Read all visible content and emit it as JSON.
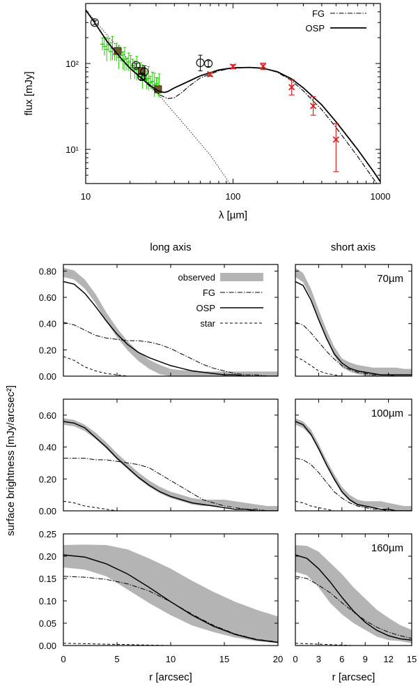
{
  "chart_data": [
    {
      "id": "sed",
      "type": "line",
      "xscale": "log",
      "yscale": "log",
      "xlim": [
        10,
        1000
      ],
      "ylim": [
        4,
        500
      ],
      "xlabel": "λ [µm]",
      "ylabel": "flux [mJy]",
      "xticks": [
        10,
        100,
        1000
      ],
      "xtick_labels": [
        "10",
        "100",
        "1000"
      ],
      "yticks": [
        10,
        100
      ],
      "ytick_labels": [
        "10¹",
        "10²"
      ],
      "legend": {
        "position": "top-right",
        "entries": [
          "FG",
          "OSP"
        ]
      },
      "series": {
        "OSP": {
          "x": [
            10,
            11.5,
            14,
            17,
            20,
            24,
            28,
            31,
            34,
            36,
            40,
            50,
            60,
            80,
            100,
            130,
            160,
            200,
            250,
            300,
            400,
            500,
            700,
            900,
            1000
          ],
          "y": [
            420,
            300,
            180,
            120,
            88,
            67,
            54,
            48,
            46,
            47,
            52,
            62,
            72,
            84,
            89,
            90,
            88,
            80,
            66,
            52,
            33,
            21,
            10,
            5.5,
            4.2
          ]
        },
        "FG": {
          "x": [
            10,
            11.5,
            14,
            17,
            20,
            24,
            28,
            32,
            36,
            40,
            45,
            50,
            60,
            80,
            100,
            130,
            160,
            200,
            250,
            300,
            400,
            500,
            700,
            900,
            1000
          ],
          "y": [
            420,
            300,
            180,
            120,
            88,
            66,
            52,
            43,
            39,
            40,
            46,
            54,
            68,
            82,
            89,
            90,
            88,
            79,
            63,
            48,
            29,
            18,
            8.3,
            4.5,
            3.5
          ]
        },
        "star": {
          "x": [
            10,
            20,
            30,
            50,
            70,
            95
          ],
          "y": [
            420,
            105,
            47,
            17,
            8.6,
            4.0
          ]
        }
      },
      "spectrum_points": [
        {
          "x": 13.0,
          "y": 168
        },
        {
          "x": 13.4,
          "y": 158
        },
        {
          "x": 13.9,
          "y": 146
        },
        {
          "x": 14.3,
          "y": 165
        },
        {
          "x": 14.8,
          "y": 138
        },
        {
          "x": 15.2,
          "y": 150
        },
        {
          "x": 15.7,
          "y": 128
        },
        {
          "x": 16.2,
          "y": 135
        },
        {
          "x": 16.8,
          "y": 118
        },
        {
          "x": 17.3,
          "y": 124
        },
        {
          "x": 17.9,
          "y": 108
        },
        {
          "x": 18.4,
          "y": 112
        },
        {
          "x": 19.0,
          "y": 98
        },
        {
          "x": 19.6,
          "y": 104
        },
        {
          "x": 20.2,
          "y": 90
        },
        {
          "x": 20.8,
          "y": 95
        },
        {
          "x": 21.5,
          "y": 84
        },
        {
          "x": 22.2,
          "y": 88
        },
        {
          "x": 22.9,
          "y": 76
        },
        {
          "x": 23.6,
          "y": 80
        },
        {
          "x": 24.3,
          "y": 70
        },
        {
          "x": 25.1,
          "y": 73
        },
        {
          "x": 25.9,
          "y": 64
        },
        {
          "x": 26.7,
          "y": 67
        },
        {
          "x": 27.5,
          "y": 60
        },
        {
          "x": 28.4,
          "y": 62
        },
        {
          "x": 29.3,
          "y": 56
        },
        {
          "x": 30.2,
          "y": 58
        },
        {
          "x": 31.0,
          "y": 53
        },
        {
          "x": 31.6,
          "y": 55
        }
      ],
      "squares": [
        {
          "x": 16.5,
          "y": 140
        },
        {
          "x": 24,
          "y": 82
        },
        {
          "x": 31,
          "y": 50
        }
      ],
      "circles": [
        {
          "x": 11.5,
          "y": 300,
          "lo": 285,
          "hi": 315
        },
        {
          "x": 22,
          "y": 95,
          "lo": 90,
          "hi": 100
        },
        {
          "x": 24,
          "y": 70,
          "lo": 65,
          "hi": 75
        },
        {
          "x": 25,
          "y": 80,
          "lo": 66,
          "hi": 94
        },
        {
          "x": 60,
          "y": 102,
          "lo": 82,
          "hi": 125
        },
        {
          "x": 68,
          "y": 100,
          "lo": 92,
          "hi": 108
        }
      ],
      "crosses": [
        {
          "x": 70,
          "y": 75,
          "lo": 71,
          "hi": 79
        },
        {
          "x": 100,
          "y": 92,
          "lo": 87,
          "hi": 97
        },
        {
          "x": 160,
          "y": 93,
          "lo": 85,
          "hi": 101
        },
        {
          "x": 250,
          "y": 53,
          "lo": 43,
          "hi": 65
        },
        {
          "x": 350,
          "y": 32,
          "lo": 25,
          "hi": 41
        },
        {
          "x": 500,
          "y": 13,
          "lo": 5.5,
          "hi": 20
        }
      ]
    }
  ],
  "profiles": {
    "col_titles": [
      "long axis",
      "short axis"
    ],
    "ylabel": "surface brightness [mJy/arcsec²]",
    "xlabel": "r [arcsec]",
    "legend": [
      "observed",
      "FG",
      "OSP",
      "star"
    ],
    "long_xticks": [
      0,
      5,
      10,
      15,
      20
    ],
    "short_xticks": [
      0,
      3,
      6,
      9,
      12,
      15
    ],
    "panels": [
      {
        "wavelength": "70µm",
        "ylim": [
          0,
          0.85
        ],
        "yticks": [
          0.0,
          0.2,
          0.4,
          0.6,
          0.8
        ],
        "ytick_labels": [
          "0.00",
          "0.20",
          "0.40",
          "0.60",
          "0.80"
        ],
        "long": {
          "r": [
            0,
            1,
            2,
            3,
            4,
            5,
            6,
            7,
            8,
            9,
            10,
            11,
            12,
            13,
            14,
            15,
            16,
            17,
            18,
            19,
            20
          ],
          "observed": [
            0.79,
            0.77,
            0.7,
            0.59,
            0.45,
            0.33,
            0.23,
            0.15,
            0.09,
            0.05,
            0.02,
            0.01,
            0.01,
            0.0,
            0.0,
            0.0,
            0.0,
            0.0,
            0.0,
            0.0,
            0.0
          ],
          "band": 0.035,
          "OSP": [
            0.72,
            0.7,
            0.63,
            0.53,
            0.42,
            0.32,
            0.24,
            0.18,
            0.14,
            0.11,
            0.08,
            0.06,
            0.04,
            0.03,
            0.02,
            0.01,
            0.01,
            0.0,
            0.0,
            0.0,
            0.0
          ],
          "FG": [
            0.41,
            0.39,
            0.35,
            0.31,
            0.29,
            0.28,
            0.27,
            0.27,
            0.26,
            0.24,
            0.21,
            0.17,
            0.13,
            0.09,
            0.06,
            0.04,
            0.02,
            0.01,
            0.01,
            0.0,
            0.0
          ],
          "star": [
            0.15,
            0.12,
            0.07,
            0.04,
            0.02,
            0.01,
            0.0,
            0.0,
            0.0,
            0.0,
            0.0,
            0.0,
            0.0,
            0.0,
            0.0,
            0.0,
            0.0,
            0.0,
            0.0,
            0.0,
            0.0
          ]
        },
        "short": {
          "r": [
            0,
            1,
            2,
            3,
            4,
            5,
            6,
            7,
            8,
            9,
            10,
            11,
            12,
            13,
            14,
            15
          ],
          "observed": [
            0.79,
            0.75,
            0.63,
            0.47,
            0.32,
            0.19,
            0.1,
            0.07,
            0.05,
            0.04,
            0.03,
            0.03,
            0.03,
            0.03,
            0.02,
            0.02
          ],
          "band": 0.035,
          "OSP": [
            0.72,
            0.69,
            0.58,
            0.43,
            0.29,
            0.17,
            0.1,
            0.06,
            0.04,
            0.03,
            0.02,
            0.01,
            0.01,
            0.01,
            0.01,
            0.01
          ],
          "FG": [
            0.41,
            0.39,
            0.33,
            0.26,
            0.19,
            0.13,
            0.08,
            0.05,
            0.03,
            0.02,
            0.01,
            0.01,
            0.01,
            0.0,
            0.0,
            0.0
          ],
          "star": [
            0.15,
            0.12,
            0.08,
            0.04,
            0.02,
            0.01,
            0.0,
            0.0,
            0.0,
            0.0,
            0.0,
            0.0,
            0.0,
            0.0,
            0.0,
            0.0
          ]
        }
      },
      {
        "wavelength": "100µm",
        "ylim": [
          0,
          0.7
        ],
        "yticks": [
          0.0,
          0.2,
          0.4,
          0.6
        ],
        "ytick_labels": [
          "0.00",
          "0.20",
          "0.40",
          "0.60"
        ],
        "long": {
          "r": [
            0,
            1,
            2,
            3,
            4,
            5,
            6,
            7,
            8,
            9,
            10,
            11,
            12,
            13,
            14,
            15,
            16,
            17,
            18,
            19,
            20
          ],
          "observed": [
            0.56,
            0.55,
            0.52,
            0.47,
            0.41,
            0.34,
            0.28,
            0.22,
            0.17,
            0.13,
            0.1,
            0.08,
            0.06,
            0.05,
            0.05,
            0.05,
            0.04,
            0.03,
            0.02,
            0.01,
            0.01
          ],
          "band": 0.02,
          "OSP": [
            0.56,
            0.55,
            0.52,
            0.46,
            0.4,
            0.33,
            0.27,
            0.21,
            0.16,
            0.12,
            0.09,
            0.07,
            0.05,
            0.04,
            0.03,
            0.02,
            0.01,
            0.01,
            0.0,
            0.0,
            0.0
          ],
          "FG": [
            0.33,
            0.33,
            0.33,
            0.32,
            0.32,
            0.31,
            0.3,
            0.29,
            0.27,
            0.23,
            0.19,
            0.15,
            0.11,
            0.07,
            0.05,
            0.03,
            0.02,
            0.01,
            0.01,
            0.0,
            0.0
          ],
          "star": [
            0.06,
            0.05,
            0.03,
            0.02,
            0.01,
            0.0,
            0.0,
            0.0,
            0.0,
            0.0,
            0.0,
            0.0,
            0.0,
            0.0,
            0.0,
            0.0,
            0.0,
            0.0,
            0.0,
            0.0,
            0.0
          ]
        },
        "short": {
          "r": [
            0,
            1,
            2,
            3,
            4,
            5,
            6,
            7,
            8,
            9,
            10,
            11,
            12,
            13,
            14,
            15
          ],
          "observed": [
            0.56,
            0.54,
            0.49,
            0.4,
            0.3,
            0.21,
            0.13,
            0.08,
            0.05,
            0.04,
            0.04,
            0.04,
            0.03,
            0.02,
            0.01,
            0.01
          ],
          "band": 0.02,
          "OSP": [
            0.56,
            0.54,
            0.48,
            0.39,
            0.29,
            0.2,
            0.12,
            0.07,
            0.04,
            0.03,
            0.02,
            0.01,
            0.01,
            0.0,
            0.0,
            0.0
          ],
          "FG": [
            0.33,
            0.32,
            0.29,
            0.24,
            0.18,
            0.12,
            0.08,
            0.05,
            0.03,
            0.02,
            0.01,
            0.01,
            0.0,
            0.0,
            0.0,
            0.0
          ],
          "star": [
            0.06,
            0.05,
            0.03,
            0.02,
            0.01,
            0.0,
            0.0,
            0.0,
            0.0,
            0.0,
            0.0,
            0.0,
            0.0,
            0.0,
            0.0,
            0.0
          ]
        }
      },
      {
        "wavelength": "160µm",
        "ylim": [
          0,
          0.25
        ],
        "yticks": [
          0.0,
          0.05,
          0.1,
          0.15,
          0.2,
          0.25
        ],
        "ytick_labels": [
          "0.00",
          "0.05",
          "0.10",
          "0.15",
          "0.20",
          "0.25"
        ],
        "long": {
          "r": [
            0,
            2,
            4,
            6,
            8,
            10,
            12,
            14,
            16,
            18,
            20
          ],
          "observed": [
            0.2,
            0.198,
            0.19,
            0.17,
            0.145,
            0.12,
            0.095,
            0.075,
            0.058,
            0.045,
            0.035
          ],
          "band": [
            0.025,
            0.028,
            0.035,
            0.045,
            0.05,
            0.052,
            0.05,
            0.045,
            0.04,
            0.035,
            0.03
          ],
          "OSP": [
            0.203,
            0.198,
            0.183,
            0.16,
            0.13,
            0.098,
            0.068,
            0.043,
            0.025,
            0.013,
            0.007
          ],
          "FG": [
            0.155,
            0.153,
            0.148,
            0.138,
            0.122,
            0.098,
            0.07,
            0.045,
            0.026,
            0.014,
            0.008
          ],
          "star": [
            0.005,
            0.004,
            0.003,
            0.002,
            0.001,
            0.0,
            0.0,
            0.0,
            0.0,
            0.0,
            0.0
          ]
        },
        "short": {
          "r": [
            0,
            1.5,
            3,
            4.5,
            6,
            7.5,
            9,
            10.5,
            12,
            13.5,
            15
          ],
          "observed": [
            0.195,
            0.19,
            0.17,
            0.14,
            0.115,
            0.09,
            0.07,
            0.05,
            0.037,
            0.028,
            0.02
          ],
          "band": [
            0.03,
            0.033,
            0.04,
            0.045,
            0.045,
            0.04,
            0.035,
            0.03,
            0.025,
            0.018,
            0.015
          ],
          "OSP": [
            0.203,
            0.195,
            0.172,
            0.142,
            0.108,
            0.077,
            0.052,
            0.034,
            0.022,
            0.015,
            0.012
          ],
          "FG": [
            0.155,
            0.15,
            0.135,
            0.118,
            0.096,
            0.075,
            0.056,
            0.041,
            0.03,
            0.022,
            0.016
          ],
          "star": [
            0.005,
            0.004,
            0.003,
            0.002,
            0.001,
            0.0,
            0.0,
            0.0,
            0.0,
            0.0,
            0.0
          ]
        }
      }
    ]
  },
  "colors": {
    "band": "#b4b4b4",
    "spectrum": "#22cc00",
    "cross": "#dd2222",
    "square": "#6b5a2e",
    "line": "#000000"
  }
}
